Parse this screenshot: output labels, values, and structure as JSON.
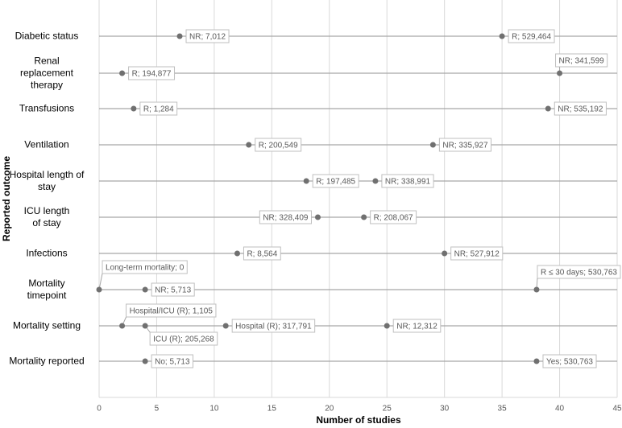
{
  "chart_data": {
    "type": "dot",
    "x_label": "Number of studies",
    "y_label": "Reported outcome",
    "xlim": [
      0,
      45
    ],
    "xticks": [
      0,
      5,
      10,
      15,
      20,
      25,
      30,
      35,
      40,
      45
    ],
    "grid": true,
    "color": "#707070",
    "rows": [
      {
        "category": "Diabetic status",
        "points": [
          {
            "x": 7,
            "label": "NR; 7,012"
          },
          {
            "x": 35,
            "label": "R; 529,464"
          }
        ]
      },
      {
        "category": "Renal\nreplacement\ntherapy",
        "points": [
          {
            "x": 2,
            "label": "R; 194,877"
          },
          {
            "x": 40,
            "label": "NR; 341,599"
          }
        ]
      },
      {
        "category": "Transfusions",
        "points": [
          {
            "x": 3,
            "label": "R; 1,284"
          },
          {
            "x": 39,
            "label": "NR; 535,192"
          }
        ]
      },
      {
        "category": "Ventilation",
        "points": [
          {
            "x": 13,
            "label": "R; 200,549"
          },
          {
            "x": 29,
            "label": "NR; 335,927"
          }
        ]
      },
      {
        "category": "Hospital length of\nstay",
        "points": [
          {
            "x": 18,
            "label": "R; 197,485"
          },
          {
            "x": 24,
            "label": "NR; 338,991"
          }
        ]
      },
      {
        "category": "ICU length\nof stay",
        "points": [
          {
            "x": 19,
            "label": "NR; 328,409"
          },
          {
            "x": 23,
            "label": "R; 208,067"
          }
        ]
      },
      {
        "category": "Infections",
        "points": [
          {
            "x": 12,
            "label": "R; 8,564"
          },
          {
            "x": 30,
            "label": "NR; 527,912"
          }
        ]
      },
      {
        "category": "Mortality\ntimepoint",
        "points": [
          {
            "x": 0,
            "label": "Long-term mortality; 0"
          },
          {
            "x": 4,
            "label": "NR; 5,713"
          },
          {
            "x": 38,
            "label": "R ≤ 30 days; 530,763"
          }
        ]
      },
      {
        "category": "Mortality setting",
        "points": [
          {
            "x": 2,
            "label": "Hospital/ICU (R); 1,105"
          },
          {
            "x": 4,
            "label": "ICU (R); 205,268"
          },
          {
            "x": 11,
            "label": "Hospital (R); 317,791"
          },
          {
            "x": 25,
            "label": "NR; 12,312"
          }
        ]
      },
      {
        "category": "Mortality reported",
        "points": [
          {
            "x": 4,
            "label": "No; 5,713"
          },
          {
            "x": 38,
            "label": "Yes; 530,763"
          }
        ]
      }
    ]
  }
}
